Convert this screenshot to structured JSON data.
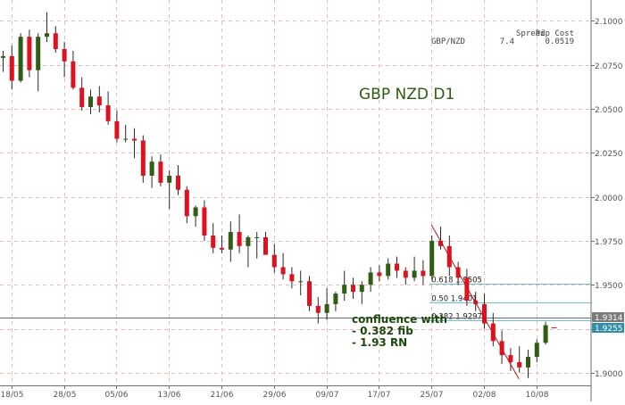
{
  "chart_data": {
    "type": "candlestick",
    "title": "GBP NZD D1",
    "pair": "GBP/NZD",
    "header": {
      "spread_label": "Spread",
      "pip_cost_label": "Pip Cost",
      "spread_value": "7.4",
      "pip_cost_value": "0.0519"
    },
    "y_ticks": [
      "1.9000",
      "1.9250",
      "1.9500",
      "1.9750",
      "2.0000",
      "2.0250",
      "2.0500",
      "2.0750",
      "2.1000"
    ],
    "y_tick_values": [
      1.9,
      1.925,
      1.95,
      1.975,
      2.0,
      2.025,
      2.05,
      2.075,
      2.1
    ],
    "x_ticks": [
      "18/05",
      "28/05",
      "05/06",
      "13/06",
      "21/06",
      "29/06",
      "09/07",
      "17/07",
      "25/07",
      "02/08",
      "10/08"
    ],
    "x_tick_index": [
      1,
      7,
      13,
      19,
      25,
      31,
      37,
      43,
      49,
      55,
      61
    ],
    "ylim": [
      1.8928,
      2.1119
    ],
    "colors": {
      "bull": "#2e5e12",
      "bear": "#e0101e",
      "fib": "#66c6cf",
      "grid": "#f0b8b8",
      "trend": "#cc1111"
    },
    "candles": [
      [
        2.079,
        2.083,
        2.071,
        2.08
      ],
      [
        2.08,
        2.086,
        2.061,
        2.066
      ],
      [
        2.066,
        2.093,
        2.065,
        2.091
      ],
      [
        2.091,
        2.095,
        2.068,
        2.072
      ],
      [
        2.072,
        2.093,
        2.06,
        2.091
      ],
      [
        2.091,
        2.105,
        2.088,
        2.093
      ],
      [
        2.093,
        2.097,
        2.082,
        2.084
      ],
      [
        2.084,
        2.088,
        2.068,
        2.077
      ],
      [
        2.077,
        2.083,
        2.061,
        2.062
      ],
      [
        2.062,
        2.068,
        2.049,
        2.051
      ],
      [
        2.051,
        2.061,
        2.047,
        2.057
      ],
      [
        2.057,
        2.063,
        2.048,
        2.052
      ],
      [
        2.052,
        2.06,
        2.041,
        2.043
      ],
      [
        2.043,
        2.049,
        2.031,
        2.033
      ],
      [
        2.033,
        2.041,
        2.031,
        2.033
      ],
      [
        2.033,
        2.039,
        2.022,
        2.032
      ],
      [
        2.032,
        2.035,
        2.008,
        2.012
      ],
      [
        2.012,
        2.023,
        2.005,
        2.02
      ],
      [
        2.02,
        2.024,
        2.006,
        2.008
      ],
      [
        2.008,
        2.015,
        1.993,
        2.012
      ],
      [
        2.012,
        2.018,
        2.001,
        2.004
      ],
      [
        2.004,
        2.006,
        1.985,
        1.989
      ],
      [
        1.989,
        1.995,
        1.983,
        1.994
      ],
      [
        1.994,
        1.998,
        1.975,
        1.978
      ],
      [
        1.978,
        1.985,
        1.968,
        1.971
      ],
      [
        1.971,
        1.978,
        1.968,
        1.97
      ],
      [
        1.97,
        1.986,
        1.963,
        1.98
      ],
      [
        1.98,
        1.99,
        1.968,
        1.972
      ],
      [
        1.972,
        1.978,
        1.96,
        1.977
      ],
      [
        1.977,
        1.98,
        1.965,
        1.977
      ],
      [
        1.977,
        1.98,
        1.968,
        1.967
      ],
      [
        1.967,
        1.973,
        1.957,
        1.96
      ],
      [
        1.96,
        1.968,
        1.953,
        1.956
      ],
      [
        1.956,
        1.96,
        1.948,
        1.952
      ],
      [
        1.952,
        1.958,
        1.944,
        1.952
      ],
      [
        1.952,
        1.955,
        1.935,
        1.938
      ],
      [
        1.938,
        1.943,
        1.928,
        1.934
      ],
      [
        1.934,
        1.948,
        1.93,
        1.939
      ],
      [
        1.939,
        1.946,
        1.935,
        1.945
      ],
      [
        1.945,
        1.958,
        1.941,
        1.95
      ],
      [
        1.95,
        1.954,
        1.942,
        1.946
      ],
      [
        1.946,
        1.952,
        1.939,
        1.95
      ],
      [
        1.95,
        1.96,
        1.946,
        1.957
      ],
      [
        1.957,
        1.961,
        1.952,
        1.955
      ],
      [
        1.955,
        1.965,
        1.953,
        1.962
      ],
      [
        1.962,
        1.966,
        1.954,
        1.958
      ],
      [
        1.958,
        1.96,
        1.95,
        1.954
      ],
      [
        1.954,
        1.966,
        1.952,
        1.958
      ],
      [
        1.958,
        1.964,
        1.95,
        1.955
      ],
      [
        1.955,
        1.978,
        1.953,
        1.975
      ],
      [
        1.975,
        1.983,
        1.97,
        1.972
      ],
      [
        1.972,
        1.978,
        1.955,
        1.96
      ],
      [
        1.96,
        1.963,
        1.95,
        1.954
      ],
      [
        1.954,
        1.959,
        1.938,
        1.941
      ],
      [
        1.941,
        1.946,
        1.935,
        1.939
      ],
      [
        1.939,
        1.945,
        1.925,
        1.928
      ],
      [
        1.928,
        1.934,
        1.915,
        1.918
      ],
      [
        1.918,
        1.924,
        1.905,
        1.91
      ],
      [
        1.91,
        1.914,
        1.901,
        1.906
      ],
      [
        1.906,
        1.915,
        1.9,
        1.903
      ],
      [
        1.903,
        1.913,
        1.897,
        1.909
      ],
      [
        1.909,
        1.919,
        1.906,
        1.917
      ],
      [
        1.917,
        1.929,
        1.916,
        1.927
      ]
    ],
    "current_tick_price": 1.9255,
    "fib_levels": [
      {
        "label": "0.618 1.9505",
        "price": 1.9505
      },
      {
        "label": "0.50 1.9401",
        "price": 1.9401
      },
      {
        "label": "0.382 1.9297",
        "price": 1.9297
      }
    ],
    "round_number_line": {
      "price": 1.9314,
      "label": "1.9314"
    },
    "current_price": {
      "price": 1.9255,
      "label": "1.9255"
    },
    "trend_line": [
      {
        "bar": 49,
        "price": 1.984
      },
      {
        "bar": 59,
        "price": 1.8965
      }
    ],
    "annotation": {
      "line1": "confluence with",
      "line2": "- 0.382 fib",
      "line3": "- 1.93 RN"
    }
  }
}
